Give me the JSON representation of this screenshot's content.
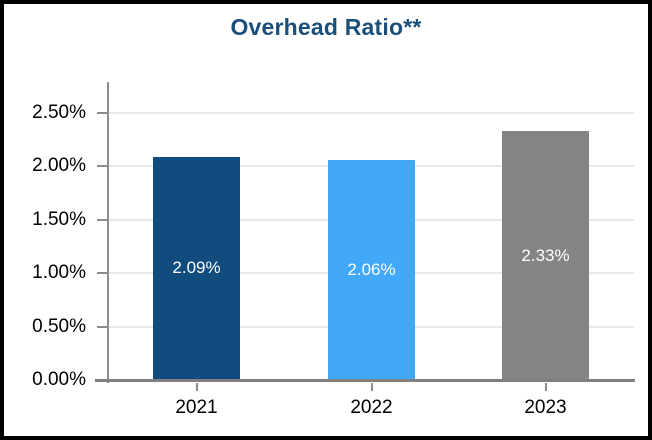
{
  "chart_data": {
    "type": "bar",
    "title": "Overhead Ratio**",
    "categories": [
      "2021",
      "2022",
      "2023"
    ],
    "values": [
      2.09,
      2.06,
      2.33
    ],
    "value_labels": [
      "2.09%",
      "2.06%",
      "2.33%"
    ],
    "bar_colors": [
      "#114C7E",
      "#41A8FA",
      "#848484"
    ],
    "y_ticks": [
      "0.00%",
      "0.50%",
      "1.00%",
      "1.50%",
      "2.00%",
      "2.50%"
    ],
    "y_tick_values": [
      0,
      0.5,
      1.0,
      1.5,
      2.0,
      2.5
    ],
    "ylim": [
      0,
      2.79
    ],
    "xlabel": "",
    "ylabel": "",
    "grid": "horizontal",
    "legend": "none",
    "colors": {
      "title": "#1B4E78",
      "axis": "#8C8C8C",
      "gridline": "#E9E9E9",
      "tick_label": "#000000",
      "data_label": "#FFFFFF",
      "frame_border": "#000000",
      "background": "#FFFFFF"
    }
  }
}
